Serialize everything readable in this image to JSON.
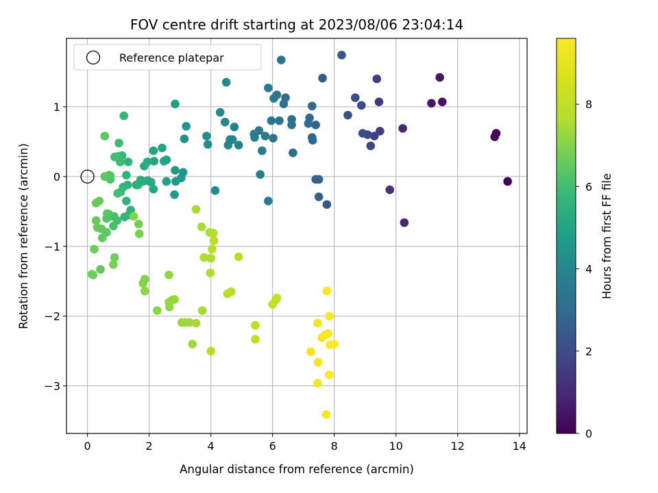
{
  "chart_data": {
    "type": "scatter",
    "title": "FOV centre drift starting at 2023/08/06 23:04:14",
    "xlabel": "Angular distance from reference (arcmin)",
    "ylabel": "Rotation from reference (arcmin)",
    "xlim": [
      -0.68,
      14.25
    ],
    "ylim": [
      -3.68,
      1.98
    ],
    "xticks": [
      0,
      2,
      4,
      6,
      8,
      10,
      12,
      14
    ],
    "yticks": [
      -3,
      -2,
      -1,
      0,
      1
    ],
    "xtick_labels": [
      "0",
      "2",
      "4",
      "6",
      "8",
      "10",
      "12",
      "14"
    ],
    "ytick_labels": [
      "−3",
      "−2",
      "−1",
      "0",
      "1"
    ],
    "grid": true,
    "legend": {
      "placement": "top-left",
      "entries": [
        "Reference platepar"
      ]
    },
    "reference_point": {
      "x": 0,
      "y": 0
    },
    "colorbar": {
      "label": "Hours from first FF file",
      "colormap": "viridis",
      "range": [
        0,
        9.6
      ],
      "ticks": [
        0,
        2,
        4,
        6,
        8
      ],
      "tick_labels": [
        "0",
        "2",
        "4",
        "6",
        "8"
      ]
    },
    "color_value": "hours from first FF file",
    "points": [
      [
        13.62,
        -0.07,
        0.0
      ],
      [
        13.25,
        0.62,
        0.1
      ],
      [
        13.2,
        0.57,
        0.15
      ],
      [
        11.5,
        1.07,
        0.4
      ],
      [
        11.15,
        1.05,
        0.5
      ],
      [
        11.42,
        1.42,
        0.55
      ],
      [
        10.27,
        -0.66,
        0.9
      ],
      [
        10.22,
        0.69,
        1.0
      ],
      [
        9.8,
        -0.19,
        1.2
      ],
      [
        9.45,
        1.07,
        1.4
      ],
      [
        9.48,
        0.65,
        1.5
      ],
      [
        9.38,
        1.4,
        1.6
      ],
      [
        9.3,
        0.58,
        1.7
      ],
      [
        9.18,
        0.44,
        1.8
      ],
      [
        9.08,
        0.6,
        1.9
      ],
      [
        8.92,
        0.62,
        2.0
      ],
      [
        8.88,
        1.02,
        2.0
      ],
      [
        8.68,
        1.13,
        2.1
      ],
      [
        8.44,
        0.88,
        2.2
      ],
      [
        8.24,
        1.74,
        2.3
      ],
      [
        7.76,
        -0.4,
        2.4
      ],
      [
        7.62,
        1.41,
        2.5
      ],
      [
        7.5,
        -0.29,
        2.6
      ],
      [
        7.5,
        -0.04,
        2.7
      ],
      [
        7.4,
        -0.04,
        2.7
      ],
      [
        7.4,
        0.74,
        2.8
      ],
      [
        7.3,
        0.52,
        2.8
      ],
      [
        7.28,
        1.01,
        2.9
      ],
      [
        7.28,
        0.56,
        2.9
      ],
      [
        7.2,
        0.84,
        3.0
      ],
      [
        7.16,
        0.76,
        3.0
      ],
      [
        6.66,
        0.34,
        3.1
      ],
      [
        6.62,
        0.82,
        3.1
      ],
      [
        6.62,
        0.74,
        3.2
      ],
      [
        6.42,
        1.13,
        3.2
      ],
      [
        6.36,
        1.04,
        3.2
      ],
      [
        6.28,
        1.67,
        3.3
      ],
      [
        6.22,
        0.8,
        3.3
      ],
      [
        6.14,
        1.17,
        3.3
      ],
      [
        6.04,
        1.12,
        3.4
      ],
      [
        6.02,
        0.55,
        3.4
      ],
      [
        5.96,
        0.8,
        3.4
      ],
      [
        5.86,
        -0.35,
        3.5
      ],
      [
        5.86,
        1.27,
        3.5
      ],
      [
        5.76,
        0.58,
        3.5
      ],
      [
        5.66,
        0.37,
        3.6
      ],
      [
        5.6,
        0.03,
        3.6
      ],
      [
        5.56,
        0.66,
        3.6
      ],
      [
        5.42,
        0.56,
        3.7
      ],
      [
        5.4,
        0.61,
        3.7
      ],
      [
        4.9,
        0.45,
        3.8
      ],
      [
        4.76,
        0.71,
        3.8
      ],
      [
        4.7,
        0.53,
        3.9
      ],
      [
        4.62,
        0.53,
        3.9
      ],
      [
        4.56,
        0.45,
        3.9
      ],
      [
        4.5,
        1.35,
        4.0
      ],
      [
        4.46,
        0.78,
        4.0
      ],
      [
        4.3,
        0.92,
        4.1
      ],
      [
        4.14,
        -0.2,
        4.2
      ],
      [
        3.9,
        0.46,
        4.3
      ],
      [
        3.86,
        0.58,
        4.3
      ],
      [
        3.2,
        0.72,
        4.5
      ],
      [
        3.14,
        0.54,
        4.5
      ],
      [
        3.1,
        0.06,
        4.6
      ],
      [
        3.04,
        -0.02,
        4.6
      ],
      [
        2.86,
        -0.07,
        4.7
      ],
      [
        2.84,
        0.09,
        4.7
      ],
      [
        2.82,
        -0.26,
        4.7
      ],
      [
        2.84,
        1.04,
        4.8
      ],
      [
        2.56,
        -0.07,
        4.9
      ],
      [
        2.56,
        0.24,
        4.9
      ],
      [
        2.48,
        0.22,
        5.0
      ],
      [
        2.42,
        0.41,
        5.0
      ],
      [
        2.16,
        0.22,
        5.1
      ],
      [
        2.14,
        0.37,
        5.1
      ],
      [
        2.14,
        -0.18,
        5.2
      ],
      [
        2.06,
        -0.08,
        5.2
      ],
      [
        1.96,
        -0.06,
        5.2
      ],
      [
        1.94,
        0.21,
        5.3
      ],
      [
        1.84,
        0.15,
        5.3
      ],
      [
        1.8,
        -0.07,
        5.3
      ],
      [
        1.72,
        -0.05,
        5.4
      ],
      [
        1.64,
        -0.12,
        5.4
      ],
      [
        1.58,
        -0.12,
        5.4
      ],
      [
        1.4,
        -0.48,
        5.5
      ],
      [
        1.34,
        -0.55,
        5.5
      ],
      [
        1.3,
        -0.12,
        5.5
      ],
      [
        1.32,
        0.21,
        5.6
      ],
      [
        1.26,
        0.02,
        5.6
      ],
      [
        1.26,
        -0.35,
        5.6
      ],
      [
        1.2,
        -0.58,
        5.7
      ],
      [
        1.16,
        -0.15,
        5.7
      ],
      [
        1.18,
        0.87,
        5.7
      ],
      [
        1.12,
        0.3,
        5.8
      ],
      [
        1.08,
        -0.22,
        5.8
      ],
      [
        1.06,
        0.21,
        5.8
      ],
      [
        1.04,
        0.24,
        5.9
      ],
      [
        1.02,
        0.48,
        5.9
      ],
      [
        1.0,
        0.29,
        5.9
      ],
      [
        0.98,
        -0.24,
        6.0
      ],
      [
        0.96,
        -0.63,
        6.0
      ],
      [
        0.88,
        0.28,
        6.0
      ],
      [
        0.86,
        -0.57,
        6.1
      ],
      [
        0.84,
        -0.71,
        6.1
      ],
      [
        0.76,
        -0.57,
        6.1
      ],
      [
        0.74,
        -0.04,
        6.2
      ],
      [
        0.74,
        0.01,
        6.2
      ],
      [
        0.7,
        -0.54,
        6.2
      ],
      [
        0.7,
        0.02,
        6.3
      ],
      [
        0.64,
        -0.53,
        6.3
      ],
      [
        0.62,
        -0.6,
        6.3
      ],
      [
        0.62,
        -0.8,
        6.4
      ],
      [
        0.56,
        0.58,
        6.4
      ],
      [
        0.56,
        0.0,
        6.4
      ],
      [
        0.48,
        -0.88,
        6.5
      ],
      [
        0.46,
        -0.75,
        6.5
      ],
      [
        0.42,
        -1.33,
        6.5
      ],
      [
        0.38,
        -0.35,
        6.6
      ],
      [
        0.32,
        -0.73,
        6.6
      ],
      [
        0.28,
        -0.38,
        6.6
      ],
      [
        0.28,
        -0.63,
        6.6
      ],
      [
        0.22,
        -1.04,
        6.7
      ],
      [
        0.18,
        -1.41,
        6.7
      ],
      [
        0.14,
        -1.4,
        6.7
      ],
      [
        0.88,
        -1.16,
        6.7
      ],
      [
        0.84,
        -1.26,
        6.8
      ],
      [
        1.66,
        -0.68,
        6.8
      ],
      [
        1.68,
        -0.82,
        6.9
      ],
      [
        1.5,
        -0.57,
        7.0
      ],
      [
        1.86,
        -1.47,
        7.0
      ],
      [
        1.8,
        -1.53,
        7.0
      ],
      [
        1.86,
        -1.64,
        7.1
      ],
      [
        2.26,
        -1.92,
        7.1
      ],
      [
        2.64,
        -1.41,
        7.2
      ],
      [
        2.64,
        -1.8,
        7.2
      ],
      [
        2.66,
        -1.87,
        7.2
      ],
      [
        2.74,
        -1.77,
        7.3
      ],
      [
        2.82,
        -1.76,
        7.3
      ],
      [
        3.06,
        -2.09,
        7.3
      ],
      [
        3.16,
        -2.09,
        7.4
      ],
      [
        3.3,
        -2.09,
        7.4
      ],
      [
        3.4,
        -2.4,
        7.4
      ],
      [
        3.52,
        -0.47,
        7.5
      ],
      [
        3.52,
        -2.1,
        7.5
      ],
      [
        3.7,
        -0.72,
        7.5
      ],
      [
        3.72,
        -1.92,
        7.5
      ],
      [
        3.78,
        -1.16,
        7.6
      ],
      [
        3.98,
        -1.38,
        7.6
      ],
      [
        3.96,
        -0.8,
        7.6
      ],
      [
        4.0,
        -1.17,
        7.6
      ],
      [
        4.04,
        -1.04,
        7.7
      ],
      [
        4.1,
        -0.92,
        7.7
      ],
      [
        4.08,
        -0.81,
        7.7
      ],
      [
        4.0,
        -2.5,
        7.7
      ],
      [
        4.54,
        -1.68,
        7.8
      ],
      [
        4.66,
        -1.65,
        7.8
      ],
      [
        4.9,
        -1.15,
        7.8
      ],
      [
        5.44,
        -2.13,
        7.9
      ],
      [
        5.44,
        -2.33,
        7.9
      ],
      [
        6.0,
        -1.83,
        7.9
      ],
      [
        6.1,
        -1.77,
        8.0
      ],
      [
        6.14,
        -1.74,
        8.0
      ],
      [
        7.24,
        -2.51,
        9.3
      ],
      [
        7.46,
        -2.1,
        9.3
      ],
      [
        7.48,
        -2.66,
        9.35
      ],
      [
        7.46,
        -2.96,
        9.4
      ],
      [
        7.6,
        -2.31,
        9.4
      ],
      [
        7.7,
        -2.27,
        9.45
      ],
      [
        7.74,
        -3.41,
        9.45
      ],
      [
        7.8,
        -2.25,
        9.5
      ],
      [
        7.76,
        -1.64,
        9.5
      ],
      [
        7.84,
        -2.0,
        9.55
      ],
      [
        7.84,
        -2.84,
        9.55
      ],
      [
        7.86,
        -2.41,
        9.6
      ],
      [
        8.0,
        -2.4,
        9.6
      ]
    ]
  }
}
